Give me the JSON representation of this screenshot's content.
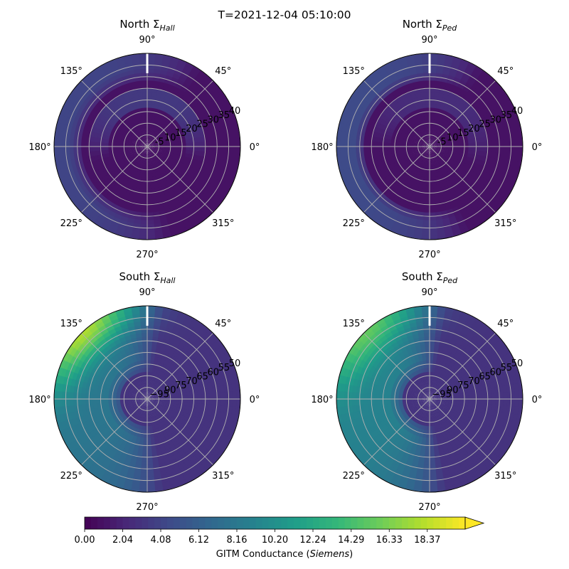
{
  "figure": {
    "title": "T=2021-12-04 05:10:00"
  },
  "chart_data": [
    {
      "type": "heatmap",
      "projection": "polar",
      "hemisphere": "North",
      "title_main": "North Σ",
      "title_sub": "Hall",
      "angle_labels": [
        "0°",
        "45°",
        "90°",
        "135°",
        "180°",
        "225°",
        "270°",
        "315°"
      ],
      "radial_labels": [
        "-5",
        "10",
        "15",
        "20",
        "25",
        "30",
        "35",
        "40"
      ],
      "radial_label_angle_deg": 22.5,
      "rings": 8,
      "background_value": 1.0,
      "features": [
        {
          "kind": "crescent",
          "description": "enhanced band",
          "center_lon_deg": 90,
          "inner_colat": 3.3,
          "outer_colat": 5.1,
          "extent_deg": 210,
          "value": 3.4
        },
        {
          "kind": "outer-band",
          "center_lon_deg": 170,
          "start_colat": 5.8,
          "extent_deg": 230,
          "value": 4.2
        }
      ],
      "value_range": [
        0,
        20.4
      ]
    },
    {
      "type": "heatmap",
      "projection": "polar",
      "hemisphere": "North",
      "title_main": "North Σ",
      "title_sub": "Ped",
      "angle_labels": [
        "0°",
        "45°",
        "90°",
        "135°",
        "180°",
        "225°",
        "270°",
        "315°"
      ],
      "radial_labels": [
        "-5",
        "10",
        "15",
        "20",
        "25",
        "30",
        "35",
        "40"
      ],
      "radial_label_angle_deg": 22.5,
      "rings": 8,
      "background_value": 1.0,
      "features": [
        {
          "kind": "crescent",
          "center_lon_deg": 80,
          "inner_colat": 3.4,
          "outer_colat": 5.0,
          "extent_deg": 200,
          "value": 2.6
        },
        {
          "kind": "outer-band",
          "center_lon_deg": 175,
          "start_colat": 5.6,
          "extent_deg": 240,
          "value": 4.6
        }
      ],
      "value_range": [
        0,
        20.4
      ]
    },
    {
      "type": "heatmap",
      "projection": "polar",
      "hemisphere": "South",
      "title_main": "South Σ",
      "title_sub": "Hall",
      "angle_labels": [
        "0°",
        "45°",
        "90°",
        "135°",
        "180°",
        "225°",
        "270°",
        "315°"
      ],
      "radial_labels": [
        "−95",
        "90",
        "75",
        "70",
        "65",
        "60",
        "55",
        "50"
      ],
      "radial_label_angle_deg": 22.5,
      "rings": 8,
      "background_value": 3.0,
      "features": [
        {
          "kind": "dayside-half",
          "center_lon_deg": 180,
          "extent_deg": 200,
          "value": 8.0
        },
        {
          "kind": "hotspot",
          "lon_deg": 135,
          "colat": 8.0,
          "spread_deg": 35,
          "value": 18.0
        }
      ],
      "value_range": [
        0,
        20.4
      ]
    },
    {
      "type": "heatmap",
      "projection": "polar",
      "hemisphere": "South",
      "title_main": "South Σ",
      "title_sub": "Ped",
      "angle_labels": [
        "0°",
        "45°",
        "90°",
        "135°",
        "180°",
        "225°",
        "270°",
        "315°"
      ],
      "radial_labels": [
        "−95",
        "90",
        "75",
        "70",
        "65",
        "60",
        "55",
        "50"
      ],
      "radial_label_angle_deg": 22.5,
      "rings": 8,
      "background_value": 3.0,
      "features": [
        {
          "kind": "dayside-half",
          "center_lon_deg": 180,
          "extent_deg": 200,
          "value": 9.0
        },
        {
          "kind": "hotspot",
          "lon_deg": 135,
          "colat": 8.0,
          "spread_deg": 35,
          "value": 15.5
        }
      ],
      "value_range": [
        0,
        20.4
      ]
    }
  ],
  "colorbar": {
    "ticks": [
      "0.00",
      "2.04",
      "4.08",
      "6.12",
      "8.16",
      "10.20",
      "12.24",
      "14.29",
      "16.33",
      "18.37"
    ],
    "min": 0,
    "max": 20.4,
    "extend": "max",
    "label_prefix": "GITM Conductance (",
    "label_italic": "Siemens",
    "label_suffix": ")"
  }
}
